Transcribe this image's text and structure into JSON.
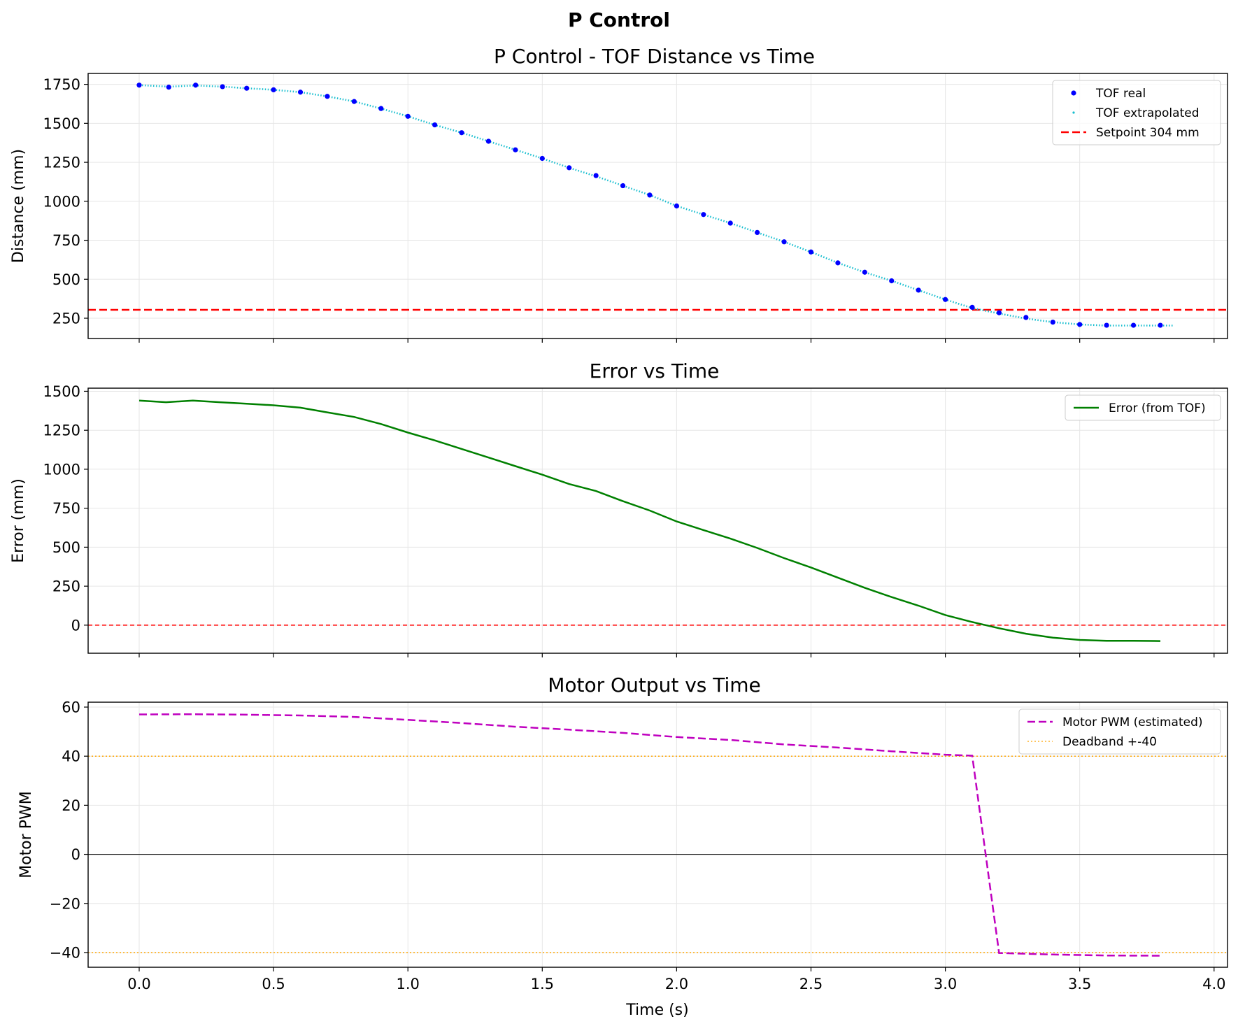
{
  "figure": {
    "suptitle": "P Control",
    "xlabel": "Time (s)"
  },
  "chart_data": [
    {
      "type": "scatter",
      "title": "P Control - TOF Distance vs Time",
      "xlabel": "",
      "ylabel": "Distance (mm)",
      "xlim": [
        -0.19,
        4.05
      ],
      "ylim": [
        120,
        1820
      ],
      "xticks": [
        0.0,
        0.5,
        1.0,
        1.5,
        2.0,
        2.5,
        3.0,
        3.5,
        4.0
      ],
      "yticks": [
        250,
        500,
        750,
        1000,
        1250,
        1500,
        1750
      ],
      "grid": true,
      "legend": "top-right",
      "series": [
        {
          "name": "TOF real",
          "kind": "points",
          "color": "#0000ff",
          "x": [
            0.0,
            0.11,
            0.21,
            0.31,
            0.4,
            0.5,
            0.6,
            0.7,
            0.8,
            0.9,
            1.0,
            1.1,
            1.2,
            1.3,
            1.4,
            1.5,
            1.6,
            1.7,
            1.8,
            1.9,
            2.0,
            2.1,
            2.2,
            2.3,
            2.4,
            2.5,
            2.6,
            2.7,
            2.8,
            2.9,
            3.0,
            3.1,
            3.2,
            3.3,
            3.4,
            3.5,
            3.6,
            3.7,
            3.8
          ],
          "y": [
            1745,
            1732,
            1745,
            1735,
            1725,
            1715,
            1700,
            1673,
            1640,
            1595,
            1545,
            1490,
            1440,
            1385,
            1330,
            1275,
            1215,
            1165,
            1100,
            1040,
            970,
            915,
            860,
            800,
            740,
            675,
            605,
            545,
            490,
            430,
            370,
            320,
            285,
            255,
            225,
            210,
            205,
            205,
            205
          ]
        },
        {
          "name": "TOF extrapolated",
          "kind": "dotted-line",
          "color": "#17becf",
          "x": [
            0.0,
            0.11,
            0.21,
            0.31,
            0.4,
            0.5,
            0.6,
            0.7,
            0.8,
            0.9,
            1.0,
            1.1,
            1.2,
            1.3,
            1.4,
            1.5,
            1.6,
            1.7,
            1.8,
            1.9,
            2.0,
            2.1,
            2.2,
            2.3,
            2.4,
            2.5,
            2.6,
            2.7,
            2.8,
            2.9,
            3.0,
            3.1,
            3.2,
            3.3,
            3.4,
            3.5,
            3.6,
            3.7,
            3.8,
            3.85
          ],
          "y": [
            1745,
            1735,
            1743,
            1735,
            1725,
            1715,
            1700,
            1673,
            1640,
            1595,
            1545,
            1490,
            1440,
            1385,
            1330,
            1275,
            1215,
            1160,
            1100,
            1040,
            970,
            915,
            860,
            800,
            740,
            675,
            605,
            545,
            490,
            430,
            370,
            315,
            280,
            248,
            225,
            210,
            203,
            203,
            203,
            203
          ]
        }
      ],
      "hlines": [
        {
          "name": "Setpoint 304 mm",
          "y": 304,
          "color": "#ff0000",
          "style": "dashed"
        }
      ]
    },
    {
      "type": "line",
      "title": "Error vs Time",
      "xlabel": "",
      "ylabel": "Error (mm)",
      "xlim": [
        -0.19,
        4.05
      ],
      "ylim": [
        -180,
        1520
      ],
      "xticks": [
        0.0,
        0.5,
        1.0,
        1.5,
        2.0,
        2.5,
        3.0,
        3.5,
        4.0
      ],
      "yticks": [
        0,
        250,
        500,
        750,
        1000,
        1250,
        1500
      ],
      "grid": true,
      "legend": "top-right",
      "series": [
        {
          "name": "Error (from TOF)",
          "color": "#008000",
          "x": [
            0.0,
            0.1,
            0.2,
            0.3,
            0.4,
            0.5,
            0.6,
            0.7,
            0.8,
            0.9,
            1.0,
            1.1,
            1.2,
            1.3,
            1.4,
            1.5,
            1.6,
            1.7,
            1.8,
            1.9,
            2.0,
            2.1,
            2.2,
            2.3,
            2.4,
            2.5,
            2.6,
            2.7,
            2.8,
            2.9,
            3.0,
            3.1,
            3.2,
            3.3,
            3.4,
            3.5,
            3.6,
            3.7,
            3.8
          ],
          "y": [
            1440,
            1430,
            1440,
            1430,
            1420,
            1410,
            1395,
            1365,
            1335,
            1290,
            1235,
            1185,
            1130,
            1075,
            1020,
            965,
            905,
            860,
            795,
            735,
            665,
            610,
            555,
            495,
            430,
            370,
            305,
            240,
            180,
            125,
            65,
            20,
            -20,
            -55,
            -80,
            -95,
            -100,
            -100,
            -102
          ]
        }
      ],
      "hlines": [
        {
          "y": 0,
          "color": "#ff0000",
          "style": "dashed"
        }
      ]
    },
    {
      "type": "line",
      "title": "Motor Output vs Time",
      "xlabel": "Time (s)",
      "ylabel": "Motor PWM",
      "xlim": [
        -0.19,
        4.05
      ],
      "ylim": [
        -46,
        62
      ],
      "xticks": [
        0.0,
        0.5,
        1.0,
        1.5,
        2.0,
        2.5,
        3.0,
        3.5,
        4.0
      ],
      "yticks": [
        -40,
        -20,
        0,
        20,
        40,
        60
      ],
      "grid": true,
      "legend": "top-right",
      "series": [
        {
          "name": "Motor PWM (estimated)",
          "color": "#bf00bf",
          "style": "dashed",
          "x": [
            0.0,
            0.2,
            0.4,
            0.6,
            0.8,
            1.0,
            1.2,
            1.4,
            1.6,
            1.8,
            2.0,
            2.2,
            2.4,
            2.6,
            2.8,
            3.0,
            3.1,
            3.2,
            3.4,
            3.6,
            3.8
          ],
          "y": [
            57,
            57.1,
            56.9,
            56.6,
            56,
            54.8,
            53.5,
            52,
            50.8,
            49.5,
            47.8,
            46.6,
            44.8,
            43.5,
            42,
            40.6,
            40.2,
            -40.2,
            -40.8,
            -41.2,
            -41.3
          ]
        }
      ],
      "hlines": [
        {
          "name": "Deadband +-40",
          "y": 40,
          "color": "#ffa500",
          "style": "dotted"
        },
        {
          "y": -40,
          "color": "#ffa500",
          "style": "dotted"
        },
        {
          "y": 0,
          "color": "#000000",
          "style": "solid"
        }
      ]
    }
  ]
}
